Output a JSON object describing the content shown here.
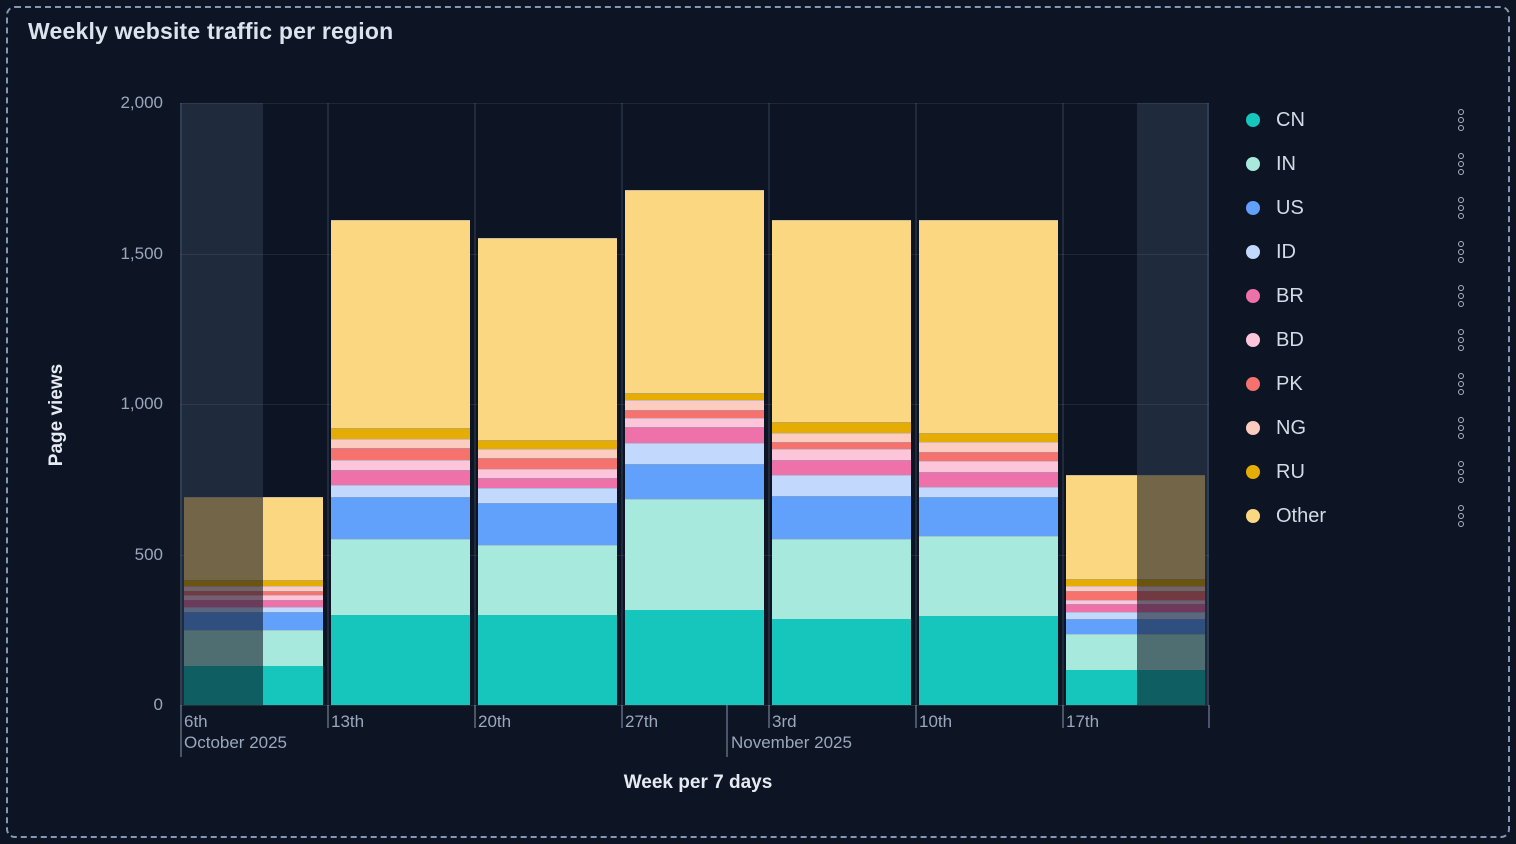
{
  "title": "Weekly website traffic per region",
  "axes": {
    "y_title": "Page views",
    "x_title": "Week per 7 days",
    "y_ticks": [
      "2,000",
      "1,500",
      "1,000",
      "500",
      "0"
    ],
    "x_ticks": [
      "6th",
      "13th",
      "20th",
      "27th",
      "3rd",
      "10th",
      "17th"
    ],
    "x_secondary": [
      "October 2025",
      "November 2025"
    ]
  },
  "legend": {
    "menu_icon": "kebab-menu-icon",
    "items": [
      "CN",
      "IN",
      "US",
      "ID",
      "BR",
      "BD",
      "PK",
      "NG",
      "RU",
      "Other"
    ]
  },
  "chart_data": {
    "type": "bar",
    "stacked": true,
    "title": "Weekly website traffic per region",
    "xlabel": "Week per 7 days",
    "ylabel": "Page views",
    "ylim": [
      0,
      2000
    ],
    "grid": true,
    "legend_position": "right",
    "categories": [
      "6th",
      "13th",
      "20th",
      "27th",
      "3rd",
      "10th",
      "17th"
    ],
    "category_months": [
      "October 2025",
      "October 2025",
      "October 2025",
      "October 2025",
      "November 2025",
      "November 2025",
      "November 2025"
    ],
    "partial_weeks": [
      "6th",
      "17th"
    ],
    "series": [
      {
        "name": "CN",
        "color": "#16c5bc",
        "values": [
          130,
          300,
          300,
          315,
          285,
          295,
          115
        ]
      },
      {
        "name": "IN",
        "color": "#a7e9dd",
        "values": [
          120,
          250,
          230,
          370,
          265,
          265,
          120
        ]
      },
      {
        "name": "US",
        "color": "#61a1fc",
        "values": [
          60,
          140,
          140,
          115,
          145,
          130,
          50
        ]
      },
      {
        "name": "ID",
        "color": "#c2d8fd",
        "values": [
          15,
          40,
          50,
          70,
          70,
          35,
          25
        ]
      },
      {
        "name": "BR",
        "color": "#ee71a9",
        "values": [
          25,
          50,
          35,
          55,
          50,
          50,
          25
        ]
      },
      {
        "name": "BD",
        "color": "#fcc5d9",
        "values": [
          15,
          35,
          30,
          30,
          35,
          35,
          15
        ]
      },
      {
        "name": "PK",
        "color": "#f5726d",
        "values": [
          15,
          40,
          35,
          25,
          25,
          30,
          30
        ]
      },
      {
        "name": "NG",
        "color": "#fdccc1",
        "values": [
          15,
          30,
          30,
          35,
          30,
          35,
          15
        ]
      },
      {
        "name": "RU",
        "color": "#e5ad02",
        "values": [
          20,
          35,
          30,
          20,
          35,
          30,
          25
        ]
      },
      {
        "name": "Other",
        "color": "#fbd781",
        "values": [
          275,
          690,
          670,
          675,
          670,
          705,
          345
        ]
      }
    ],
    "totals": [
      690,
      1610,
      1550,
      1710,
      1610,
      1610,
      765
    ]
  }
}
